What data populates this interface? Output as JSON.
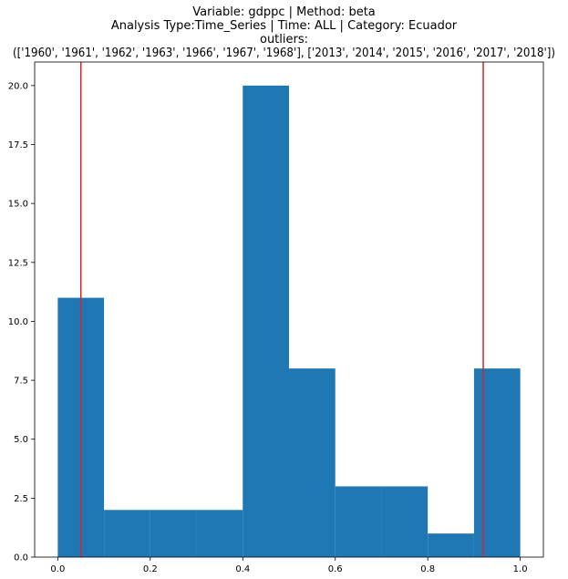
{
  "chart_data": {
    "type": "bar",
    "title_lines": [
      "Variable: gdppc | Method: beta",
      "Analysis Type:Time_Series | Time: ALL | Category: Ecuador",
      "outliers:",
      "(['1960', '1961', '1962', '1963', '1966', '1967', '1968'], ['2013', '2014', '2015', '2016', '2017', '2018'])"
    ],
    "xlabel": "",
    "ylabel": "",
    "xlim": [
      -0.05,
      1.05
    ],
    "ylim": [
      0,
      21
    ],
    "bins": [
      {
        "x0": 0.0,
        "x1": 0.1,
        "count": 11
      },
      {
        "x0": 0.1,
        "x1": 0.2,
        "count": 2
      },
      {
        "x0": 0.2,
        "x1": 0.3,
        "count": 2
      },
      {
        "x0": 0.3,
        "x1": 0.4,
        "count": 2
      },
      {
        "x0": 0.4,
        "x1": 0.5,
        "count": 20
      },
      {
        "x0": 0.5,
        "x1": 0.6,
        "count": 8
      },
      {
        "x0": 0.6,
        "x1": 0.7,
        "count": 3
      },
      {
        "x0": 0.7,
        "x1": 0.8,
        "count": 3
      },
      {
        "x0": 0.8,
        "x1": 0.9,
        "count": 1
      },
      {
        "x0": 0.9,
        "x1": 1.0,
        "count": 8
      }
    ],
    "x_ticks": [
      0.0,
      0.2,
      0.4,
      0.6,
      0.8,
      1.0
    ],
    "x_tick_labels": [
      "0.0",
      "0.2",
      "0.4",
      "0.6",
      "0.8",
      "1.0"
    ],
    "y_ticks": [
      0.0,
      2.5,
      5.0,
      7.5,
      10.0,
      12.5,
      15.0,
      17.5,
      20.0
    ],
    "y_tick_labels": [
      "0.0",
      "2.5",
      "5.0",
      "7.5",
      "10.0",
      "12.5",
      "15.0",
      "17.5",
      "20.0"
    ],
    "reference_lines": [
      0.05,
      0.92
    ],
    "grid": false,
    "colors": {
      "bar": "#1f77b4",
      "reference_line": "#d62728",
      "axes": "#000000"
    }
  }
}
